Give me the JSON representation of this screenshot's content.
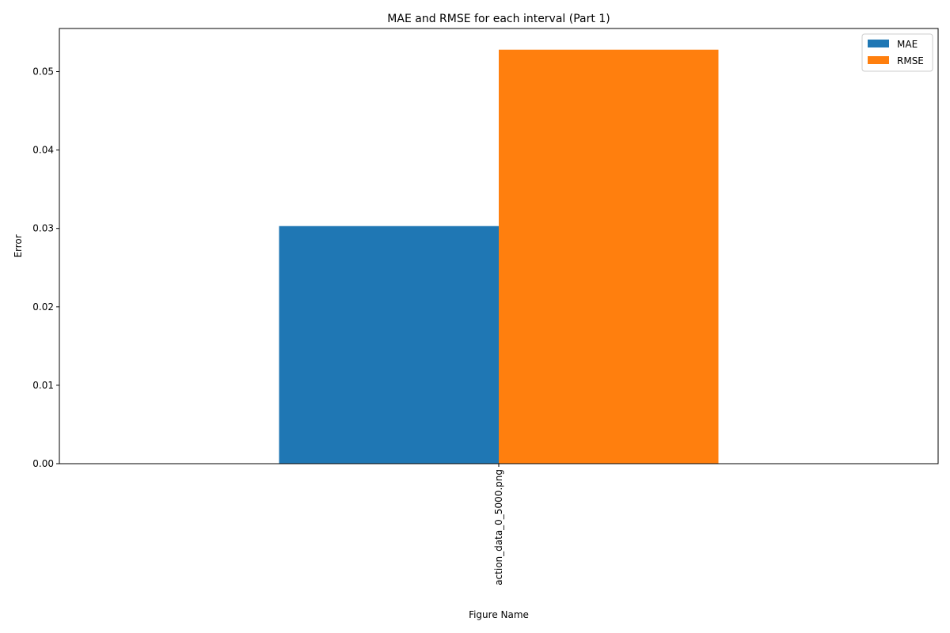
{
  "chart_data": {
    "type": "bar",
    "title": "MAE and RMSE for each interval (Part 1)",
    "xlabel": "Figure Name",
    "ylabel": "Error",
    "categories": [
      "action_data_0_5000.png"
    ],
    "series": [
      {
        "name": "MAE",
        "values": [
          0.0303
        ],
        "color": "#1f77b4"
      },
      {
        "name": "RMSE",
        "values": [
          0.0528
        ],
        "color": "#ff7f0e"
      }
    ],
    "ylim": [
      0,
      0.0555
    ],
    "yticks": [
      "0.00",
      "0.01",
      "0.02",
      "0.03",
      "0.04",
      "0.05"
    ],
    "grid": false,
    "legend_position": "top-right"
  }
}
